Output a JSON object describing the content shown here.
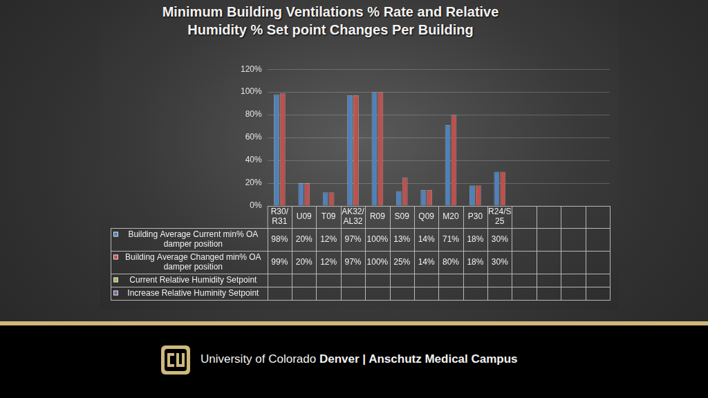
{
  "chart_data": {
    "type": "bar",
    "title": "Minimum Building Ventilations % Rate and Relative Humidity % Set point Changes Per Building",
    "categories": [
      "R30/R31",
      "U09",
      "T09",
      "AK32/AL32",
      "R09",
      "S09",
      "Q09",
      "M20",
      "P30",
      "R24/S25",
      null,
      null,
      null,
      null
    ],
    "series": [
      {
        "name": "Building Average Current min% OA damper position",
        "color": "#4f81bd",
        "values": [
          98,
          20,
          12,
          97,
          100,
          13,
          14,
          71,
          18,
          30,
          null,
          null,
          null,
          null
        ],
        "value_labels": [
          "98%",
          "20%",
          "12%",
          "97%",
          "100%",
          "13%",
          "14%",
          "71%",
          "18%",
          "30%",
          null,
          null,
          null,
          null
        ]
      },
      {
        "name": "Building Average Changed min% OA damper position",
        "color": "#c0504d",
        "values": [
          99,
          20,
          12,
          97,
          100,
          25,
          14,
          80,
          18,
          30,
          null,
          null,
          null,
          null
        ],
        "value_labels": [
          "99%",
          "20%",
          "12%",
          "97%",
          "100%",
          "25%",
          "14%",
          "80%",
          "18%",
          "30%",
          null,
          null,
          null,
          null
        ]
      },
      {
        "name": "Current Relative Humidity Setpoint",
        "color": "#9bbb59",
        "values": [
          null,
          null,
          null,
          null,
          null,
          null,
          null,
          null,
          null,
          null,
          null,
          null,
          null,
          null
        ]
      },
      {
        "name": "Increase Relative Huminity Setpoint",
        "color": "#8064a2",
        "values": [
          null,
          null,
          null,
          null,
          null,
          null,
          null,
          null,
          null,
          null,
          null,
          null,
          null,
          null
        ]
      }
    ],
    "ylim": [
      0,
      120
    ],
    "yticks": [
      {
        "value": 0,
        "label": "0%"
      },
      {
        "value": 20,
        "label": "20%"
      },
      {
        "value": 40,
        "label": "40%"
      },
      {
        "value": 60,
        "label": "60%"
      },
      {
        "value": 80,
        "label": "80%"
      },
      {
        "value": 100,
        "label": "100%"
      },
      {
        "value": 120,
        "label": "120%"
      }
    ],
    "grid": true
  },
  "footer": {
    "institution": "University of Colorado",
    "campus": "Denver | Anschutz Medical Campus"
  }
}
